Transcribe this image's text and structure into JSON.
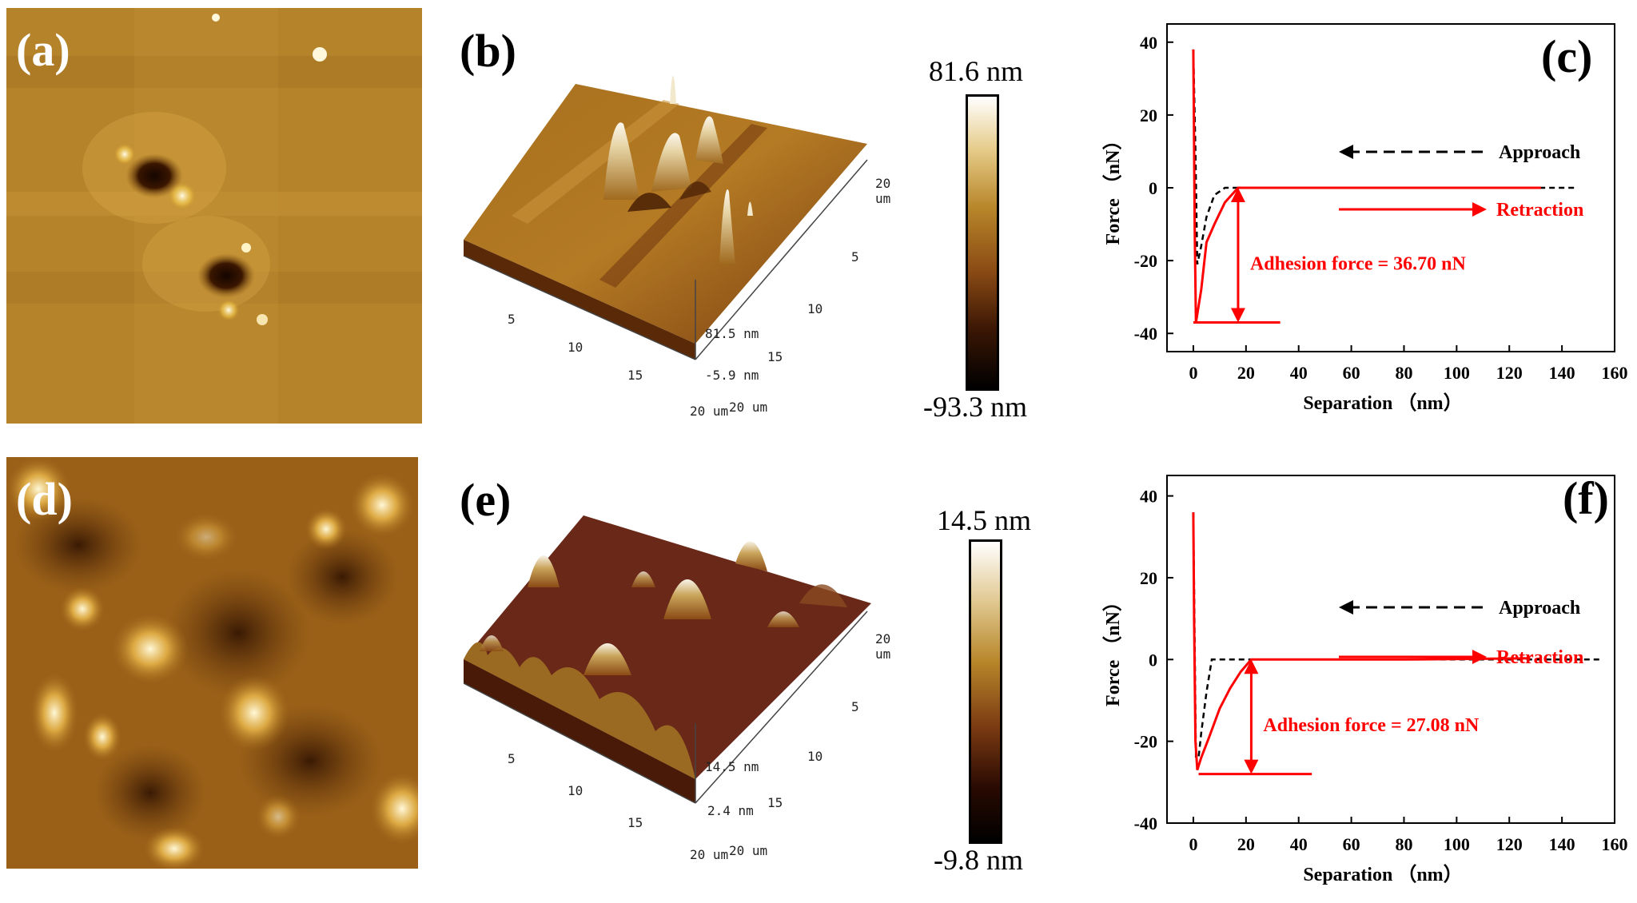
{
  "panels": {
    "a": {
      "label": "(a)"
    },
    "b": {
      "label": "(b)",
      "x_ticks": [
        "5",
        "10",
        "15",
        "20 um"
      ],
      "y_ticks": [
        "5",
        "10",
        "15",
        "20 um"
      ],
      "top_ticks": [
        "20 um"
      ],
      "z_ticks": [
        "81.5 nm",
        "-5.9 nm"
      ],
      "colorbar_max": "81.6 nm",
      "colorbar_min": "-93.3 nm"
    },
    "c": {
      "label": "(c)"
    },
    "d": {
      "label": "(d)"
    },
    "e": {
      "label": "(e)",
      "x_ticks": [
        "5",
        "10",
        "15",
        "20 um"
      ],
      "y_ticks": [
        "5",
        "10",
        "15",
        "20 um"
      ],
      "top_ticks": [
        "20 um"
      ],
      "z_ticks": [
        "14.5 nm",
        "2.4 nm"
      ],
      "colorbar_max": "14.5 nm",
      "colorbar_min": "-9.8 nm"
    },
    "f": {
      "label": "(f)"
    }
  },
  "colors": {
    "approach": "#000000",
    "retraction": "#ff0000",
    "afm_gold": "#b8862a",
    "afm_dark": "#3a1600"
  },
  "chart_data": [
    {
      "id": "c",
      "type": "line",
      "xlabel": "Separation （nm）",
      "ylabel": "Force （nN）",
      "xlim": [
        -10,
        160
      ],
      "ylim": [
        -45,
        45
      ],
      "x_ticks": [
        0,
        20,
        40,
        60,
        80,
        100,
        120,
        140,
        160
      ],
      "y_ticks": [
        -40,
        -20,
        0,
        20,
        40
      ],
      "series": [
        {
          "name": "Approach",
          "style": "dashed",
          "x": [
            0,
            0.8,
            1.5,
            3,
            5,
            8,
            12,
            20,
            60,
            100,
            145
          ],
          "y": [
            38,
            10,
            -21,
            -16,
            -8,
            -2,
            0,
            0,
            0,
            0,
            0
          ]
        },
        {
          "name": "Retraction",
          "style": "solid",
          "x": [
            0,
            0.2,
            0.5,
            1,
            3,
            5,
            8,
            12,
            17,
            20,
            60,
            100,
            132
          ],
          "y": [
            38,
            20,
            -10,
            -37,
            -28,
            -15,
            -10,
            -4,
            0,
            0,
            0,
            0,
            0
          ]
        }
      ],
      "legend": [
        {
          "name": "Approach",
          "direction": "left"
        },
        {
          "name": "Retraction",
          "direction": "right"
        }
      ],
      "annotation": {
        "text": "Adhesion force = 36.70 nN",
        "x": 17,
        "y_top": 0,
        "y_bottom": -37,
        "baseline_x": [
          0,
          33
        ]
      }
    },
    {
      "id": "f",
      "type": "line",
      "xlabel": "Separation （nm）",
      "ylabel": "Force （nN）",
      "xlim": [
        -10,
        160
      ],
      "ylim": [
        -40,
        45
      ],
      "x_ticks": [
        0,
        20,
        40,
        60,
        80,
        100,
        120,
        140,
        160
      ],
      "y_ticks": [
        -40,
        -20,
        0,
        20,
        40
      ],
      "series": [
        {
          "name": "Approach",
          "style": "dashed",
          "x": [
            0,
            0.5,
            1,
            2,
            3,
            5,
            7,
            20,
            60,
            100,
            155
          ],
          "y": [
            36,
            5,
            -24,
            -24,
            -18,
            -8,
            0,
            0,
            0,
            0,
            0
          ]
        },
        {
          "name": "Retraction",
          "style": "solid",
          "x": [
            0,
            0.3,
            0.8,
            1.5,
            3,
            6,
            10,
            14,
            18,
            22,
            40,
            80,
            128
          ],
          "y": [
            36,
            10,
            -20,
            -27,
            -24,
            -19,
            -12,
            -7,
            -3,
            0,
            0,
            0,
            0.3
          ]
        }
      ],
      "legend": [
        {
          "name": "Approach",
          "direction": "left"
        },
        {
          "name": "Retraction",
          "direction": "right"
        }
      ],
      "annotation": {
        "text": "Adhesion force = 27.08 nN",
        "x": 22,
        "y_top": 0,
        "y_bottom": -28,
        "baseline_x": [
          2,
          45
        ]
      }
    }
  ]
}
